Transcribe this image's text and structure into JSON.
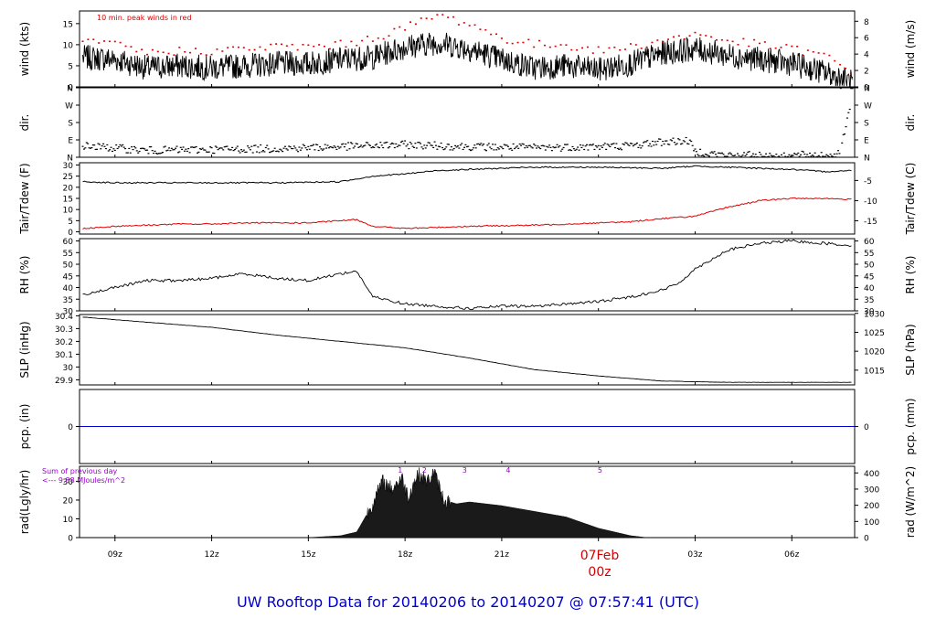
{
  "footer_title": "UW Rooftop Data for 20140206  to  20140207 @ 07:57:41  (UTC)",
  "date_marker": {
    "date": "07Feb",
    "hour": "00z"
  },
  "colors": {
    "axis": "#000000",
    "trace": "#000000",
    "peak": "#e00000",
    "precip": "#0000cc",
    "annot": "#9900cc",
    "footer": "#0000cc",
    "marker": "#d40000"
  },
  "chart_data": {
    "type": "line",
    "x_ticks": [
      "09z",
      "12z",
      "15z",
      "18z",
      "21z",
      "03z",
      "06z"
    ],
    "x_range_hours_utc": [
      7.9,
      31.95
    ],
    "panels": [
      {
        "id": "wind",
        "ylabel_left": "wind (kts)",
        "ylabel_right": "wind (m/s)",
        "yticks_left": [
          0,
          5,
          10,
          15
        ],
        "yticks_right": [
          0,
          2,
          4,
          6,
          8
        ],
        "ylim": [
          0,
          18
        ],
        "right_ylim": [
          0,
          9.26
        ],
        "annotation": "10 min. peak winds in red",
        "series": [
          {
            "label": "wind",
            "x": [
              8,
              9,
              10,
              11,
              12,
              13,
              14,
              15,
              16,
              17,
              18,
              19,
              20,
              21,
              22,
              23,
              24,
              25,
              26,
              27,
              28,
              29,
              30,
              31,
              31.9
            ],
            "y": [
              7,
              6.5,
              4.5,
              5,
              4.5,
              5,
              5.5,
              5.5,
              6.5,
              7,
              9.5,
              10.5,
              9,
              6.5,
              4.5,
              5,
              4,
              5.5,
              8,
              9,
              7.5,
              6.5,
              5.5,
              3.5,
              1
            ]
          },
          {
            "label": "peak",
            "x": [
              8,
              9,
              10,
              11,
              12,
              13,
              14,
              15,
              16,
              17,
              18,
              19,
              20,
              21,
              22,
              23,
              24,
              25,
              26,
              27,
              28,
              29,
              30,
              31,
              31.9
            ],
            "y": [
              10.5,
              10,
              8,
              8.5,
              8.5,
              9,
              9.5,
              9.5,
              10,
              11.5,
              14,
              17,
              15,
              11.5,
              10,
              10,
              8.5,
              9.5,
              11,
              12.5,
              11,
              10,
              9,
              7.5,
              3
            ]
          }
        ]
      },
      {
        "id": "dir",
        "ylabel_left": "dir.",
        "ylabel_right": "dir.",
        "yticks_left": [
          "N",
          "E",
          "S",
          "W",
          "N"
        ],
        "yticks_right": [
          "N",
          "E",
          "S",
          "W",
          "N"
        ],
        "ylim": [
          0,
          360
        ],
        "series": [
          {
            "label": "direction",
            "x": [
              8,
              10,
              12,
              14,
              16,
              18,
              20,
              22,
              24,
              25,
              26,
              26.8,
              27,
              28,
              30,
              31.5,
              31.9
            ],
            "y": [
              60,
              35,
              40,
              45,
              55,
              65,
              55,
              50,
              55,
              60,
              80,
              85,
              30,
              10,
              10,
              15,
              350
            ]
          }
        ]
      },
      {
        "id": "temp",
        "ylabel_left": "Tair/Tdew (F)",
        "ylabel_right": "Tair/Tdew (C)",
        "yticks_left": [
          0,
          5,
          10,
          15,
          20,
          25,
          30
        ],
        "yticks_right": [
          -15,
          -10,
          -5
        ],
        "ylim": [
          -1,
          31
        ],
        "right_ylim": [
          -18.3,
          -0.6
        ],
        "series": [
          {
            "label": "Tair",
            "x": [
              8,
              9,
              10,
              12,
              14,
              16,
              17,
              18,
              19,
              20,
              22,
              24,
              26,
              27,
              28,
              30,
              31,
              31.9
            ],
            "y": [
              22.5,
              22,
              22,
              22,
              22,
              22.5,
              25,
              26,
              27.5,
              28,
              29,
              29,
              28.5,
              29.5,
              29,
              28,
              27,
              27.5
            ]
          },
          {
            "label": "Tdew",
            "x": [
              8,
              9,
              10,
              11,
              12,
              13,
              14,
              15,
              16,
              16.5,
              17,
              18,
              19,
              20,
              22,
              24,
              25,
              26,
              27,
              27.5,
              28,
              29,
              30,
              31,
              31.9
            ],
            "y": [
              1.5,
              2.5,
              3,
              3.5,
              3.5,
              4,
              4,
              4,
              5,
              5.5,
              2.5,
              1.5,
              2,
              2.5,
              3,
              4,
              4.5,
              6,
              7,
              9,
              11,
              14,
              15,
              15,
              14.5
            ]
          }
        ]
      },
      {
        "id": "rh",
        "ylabel_left": "RH (%)",
        "ylabel_right": "RH (%)",
        "yticks_left": [
          30,
          35,
          40,
          45,
          50,
          55,
          60
        ],
        "yticks_right": [
          30,
          35,
          40,
          45,
          50,
          55,
          60
        ],
        "ylim": [
          30,
          61
        ],
        "series": [
          {
            "label": "RH",
            "x": [
              8,
              9,
              10,
              11,
              12,
              13,
              14,
              15,
              16,
              16.5,
              17,
              18,
              19,
              20,
              21,
              22,
              23,
              24,
              25,
              26,
              26.5,
              27,
              28,
              29,
              30,
              31,
              31.9
            ],
            "y": [
              37,
              40,
              43,
              43,
              44,
              46,
              44,
              43,
              46,
              47,
              36,
              33,
              32,
              31,
              32,
              32,
              33,
              34,
              36,
              39,
              42,
              48,
              56,
              59,
              60,
              59,
              58
            ]
          }
        ]
      },
      {
        "id": "slp",
        "ylabel_left": "SLP (inHg)",
        "ylabel_right": "SLP (hPa)",
        "yticks_left": [
          29.9,
          30.0,
          30.1,
          30.2,
          30.3,
          30.4
        ],
        "yticks_right": [
          1015,
          1020,
          1025,
          1030
        ],
        "ylim": [
          29.86,
          30.41
        ],
        "right_ylim": [
          1011.1,
          1029.7
        ],
        "series": [
          {
            "label": "SLP",
            "x": [
              8,
              10,
              12,
              14,
              16,
              18,
              20,
              22,
              24,
              26,
              28,
              30,
              31.9
            ],
            "y": [
              30.39,
              30.35,
              30.31,
              30.25,
              30.2,
              30.15,
              30.07,
              29.98,
              29.93,
              29.89,
              29.88,
              29.88,
              29.88
            ]
          }
        ]
      },
      {
        "id": "pcp",
        "ylabel_left": "pcp. (in)",
        "ylabel_right": "pcp. (mm)",
        "yticks_left": [
          0
        ],
        "yticks_right": [
          0
        ],
        "ylim": [
          -0.1,
          0.1
        ],
        "series": [
          {
            "label": "precip",
            "x": [
              7.9,
              31.95
            ],
            "y": [
              0,
              0
            ]
          }
        ]
      },
      {
        "id": "rad",
        "ylabel_left": "rad(Lgly/hr)",
        "ylabel_right": "rad (W/m^2)",
        "yticks_left": [
          0,
          10,
          20,
          30
        ],
        "yticks_right": [
          0,
          100,
          200,
          300,
          400
        ],
        "ylim": [
          0,
          38
        ],
        "right_ylim": [
          0,
          441
        ],
        "annotation_lines": [
          "Sum of previous day",
          "<--- 9.88 MJoules/m^2"
        ],
        "markers": [
          {
            "label": "1",
            "x": 17.85
          },
          {
            "label": "2",
            "x": 18.6
          },
          {
            "label": "3",
            "x": 19.85
          },
          {
            "label": "4",
            "x": 21.2
          },
          {
            "label": "5",
            "x": 24.05
          }
        ],
        "series": [
          {
            "label": "radiation",
            "x": [
              15,
              16,
              16.5,
              17,
              17.3,
              17.6,
              17.9,
              18.1,
              18.4,
              18.7,
              18.9,
              19.2,
              19.6,
              20,
              21,
              22,
              23,
              24,
              25,
              25.5
            ],
            "y": [
              0,
              1,
              3,
              18,
              30,
              26,
              32,
              22,
              34,
              30,
              35,
              20,
              18,
              19,
              17,
              14,
              11,
              5,
              1,
              0
            ]
          }
        ]
      }
    ]
  }
}
